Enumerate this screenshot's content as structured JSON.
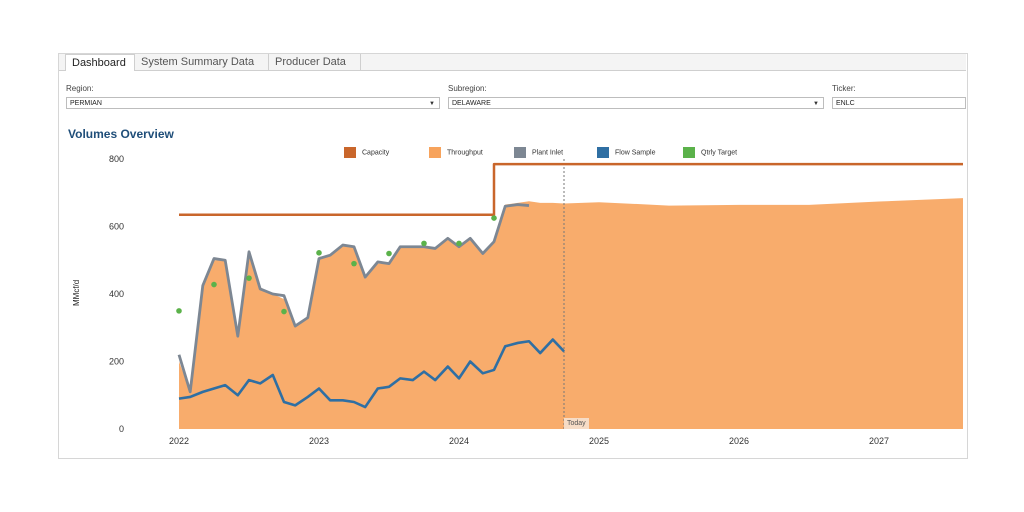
{
  "tabs": [
    {
      "label": "Dashboard"
    },
    {
      "label": "System Summary Data"
    },
    {
      "label": "Producer Data"
    }
  ],
  "filters": {
    "region": {
      "label": "Region:",
      "value": "PERMIAN"
    },
    "subregion": {
      "label": "Subregion:",
      "value": "DELAWARE"
    },
    "ticker": {
      "label": "Ticker:",
      "value": "ENLC"
    }
  },
  "title": "Volumes Overview",
  "chart_data": {
    "type": "area",
    "ylabel": "MMcf/d",
    "ylim": [
      0,
      800
    ],
    "yticks": [
      0,
      200,
      400,
      600,
      800
    ],
    "xticks": [
      "2022",
      "2023",
      "2024",
      "2025",
      "2026",
      "2027"
    ],
    "legend": [
      "Capacity",
      "Throughput",
      "Plant Inlet",
      "Flow Sample",
      "Qtrly Target"
    ],
    "today_label": "Today",
    "today_x": 2024.75,
    "colors": {
      "Capacity": "#c9662b",
      "Throughput": "#f7a35c",
      "Plant Inlet": "#7d8793",
      "Flow Sample": "#2f6fa3",
      "Qtrly Target": "#5bb24a"
    },
    "series": [
      {
        "name": "Capacity",
        "points": [
          [
            2022.0,
            635
          ],
          [
            2024.25,
            635
          ],
          [
            2024.25,
            785
          ],
          [
            2027.6,
            785
          ]
        ]
      },
      {
        "name": "Throughput",
        "points": [
          [
            2022.0,
            200
          ],
          [
            2022.08,
            110
          ],
          [
            2022.17,
            430
          ],
          [
            2022.25,
            500
          ],
          [
            2022.33,
            500
          ],
          [
            2022.42,
            280
          ],
          [
            2022.5,
            520
          ],
          [
            2022.58,
            420
          ],
          [
            2022.67,
            400
          ],
          [
            2022.75,
            385
          ],
          [
            2022.83,
            310
          ],
          [
            2022.92,
            330
          ],
          [
            2023.0,
            510
          ],
          [
            2023.08,
            515
          ],
          [
            2023.17,
            545
          ],
          [
            2023.25,
            540
          ],
          [
            2023.33,
            445
          ],
          [
            2023.42,
            490
          ],
          [
            2023.5,
            490
          ],
          [
            2023.58,
            540
          ],
          [
            2023.67,
            540
          ],
          [
            2023.75,
            540
          ],
          [
            2023.83,
            535
          ],
          [
            2023.92,
            560
          ],
          [
            2024.0,
            545
          ],
          [
            2024.08,
            560
          ],
          [
            2024.17,
            520
          ],
          [
            2024.25,
            555
          ],
          [
            2024.33,
            665
          ],
          [
            2024.42,
            670
          ],
          [
            2024.5,
            675
          ],
          [
            2024.58,
            670
          ],
          [
            2024.67,
            670
          ],
          [
            2024.75,
            668
          ],
          [
            2025.0,
            672
          ],
          [
            2025.5,
            662
          ],
          [
            2026.0,
            664
          ],
          [
            2026.5,
            664
          ],
          [
            2027.0,
            674
          ],
          [
            2027.6,
            684
          ]
        ]
      },
      {
        "name": "Plant Inlet",
        "points": [
          [
            2022.0,
            220
          ],
          [
            2022.08,
            110
          ],
          [
            2022.17,
            425
          ],
          [
            2022.25,
            505
          ],
          [
            2022.33,
            500
          ],
          [
            2022.42,
            275
          ],
          [
            2022.5,
            525
          ],
          [
            2022.58,
            415
          ],
          [
            2022.67,
            400
          ],
          [
            2022.75,
            395
          ],
          [
            2022.83,
            305
          ],
          [
            2022.92,
            330
          ],
          [
            2023.0,
            505
          ],
          [
            2023.08,
            515
          ],
          [
            2023.17,
            545
          ],
          [
            2023.25,
            540
          ],
          [
            2023.33,
            450
          ],
          [
            2023.42,
            495
          ],
          [
            2023.5,
            490
          ],
          [
            2023.58,
            540
          ],
          [
            2023.67,
            540
          ],
          [
            2023.75,
            540
          ],
          [
            2023.83,
            535
          ],
          [
            2023.92,
            565
          ],
          [
            2024.0,
            540
          ],
          [
            2024.08,
            565
          ],
          [
            2024.17,
            520
          ],
          [
            2024.25,
            555
          ],
          [
            2024.33,
            660
          ],
          [
            2024.42,
            665
          ],
          [
            2024.5,
            662
          ]
        ]
      },
      {
        "name": "Flow Sample",
        "points": [
          [
            2022.0,
            90
          ],
          [
            2022.08,
            95
          ],
          [
            2022.17,
            110
          ],
          [
            2022.25,
            120
          ],
          [
            2022.33,
            130
          ],
          [
            2022.42,
            100
          ],
          [
            2022.5,
            145
          ],
          [
            2022.58,
            135
          ],
          [
            2022.67,
            160
          ],
          [
            2022.75,
            80
          ],
          [
            2022.83,
            70
          ],
          [
            2022.92,
            95
          ],
          [
            2023.0,
            120
          ],
          [
            2023.08,
            85
          ],
          [
            2023.17,
            85
          ],
          [
            2023.25,
            80
          ],
          [
            2023.33,
            65
          ],
          [
            2023.42,
            120
          ],
          [
            2023.5,
            125
          ],
          [
            2023.58,
            150
          ],
          [
            2023.67,
            145
          ],
          [
            2023.75,
            170
          ],
          [
            2023.83,
            145
          ],
          [
            2023.92,
            185
          ],
          [
            2024.0,
            150
          ],
          [
            2024.08,
            200
          ],
          [
            2024.17,
            165
          ],
          [
            2024.25,
            175
          ],
          [
            2024.33,
            245
          ],
          [
            2024.42,
            255
          ],
          [
            2024.5,
            260
          ],
          [
            2024.58,
            225
          ],
          [
            2024.67,
            265
          ],
          [
            2024.75,
            230
          ]
        ]
      },
      {
        "name": "Qtrly Target",
        "points": [
          [
            2022.0,
            350
          ],
          [
            2022.25,
            428
          ],
          [
            2022.5,
            447
          ],
          [
            2022.75,
            348
          ],
          [
            2023.0,
            522
          ],
          [
            2023.25,
            490
          ],
          [
            2023.5,
            520
          ],
          [
            2023.75,
            550
          ],
          [
            2024.0,
            550
          ],
          [
            2024.25,
            625
          ]
        ]
      }
    ]
  }
}
